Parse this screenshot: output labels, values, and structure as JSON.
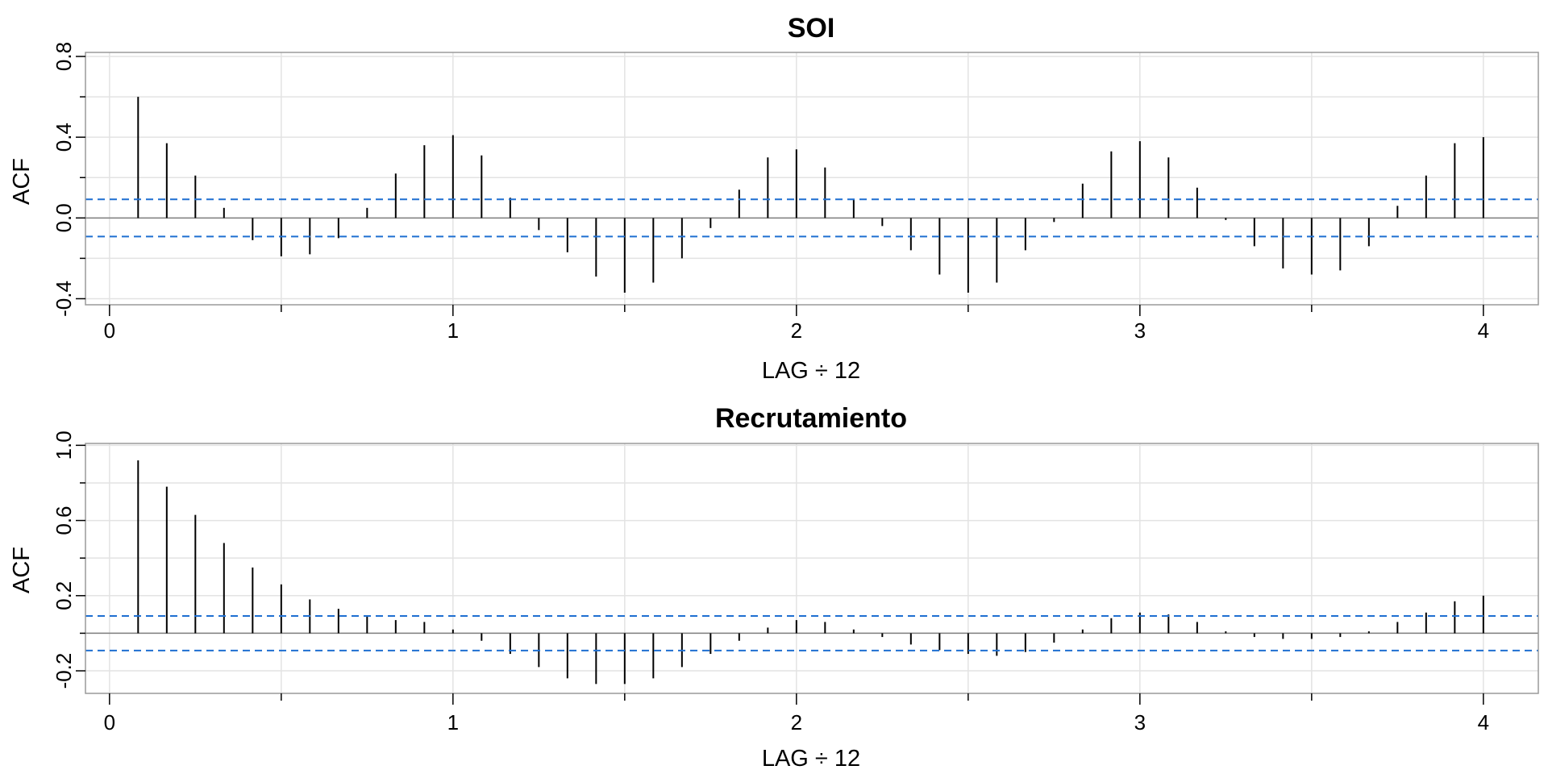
{
  "chart_data": [
    {
      "type": "bar",
      "title": "SOI",
      "xlabel": "LAG ÷ 12",
      "ylabel": "ACF",
      "xlim": [
        -0.07,
        4.16
      ],
      "ylim": [
        -0.43,
        0.82
      ],
      "xticks": [
        0,
        1,
        2,
        3,
        4
      ],
      "xtick_labels": [
        "0",
        "1",
        "2",
        "3",
        "4"
      ],
      "yticks": [
        -0.4,
        0.0,
        0.4,
        0.8
      ],
      "ytick_labels": [
        "-0.4",
        "0.0",
        "0.4",
        "0.8"
      ],
      "grid": true,
      "confidence_band": [
        -0.092,
        0.092
      ],
      "colors": {
        "spike": "#000000",
        "band": "#1f6fd1",
        "zero": "#7f7f7f",
        "grid": "#e3e3e3",
        "frame": "#9a9a9a"
      },
      "lags": [
        0.0833,
        0.1667,
        0.25,
        0.3333,
        0.4167,
        0.5,
        0.5833,
        0.6667,
        0.75,
        0.8333,
        0.9167,
        1.0,
        1.0833,
        1.1667,
        1.25,
        1.3333,
        1.4167,
        1.5,
        1.5833,
        1.6667,
        1.75,
        1.8333,
        1.9167,
        2.0,
        2.0833,
        2.1667,
        2.25,
        2.3333,
        2.4167,
        2.5,
        2.5833,
        2.6667,
        2.75,
        2.8333,
        2.9167,
        3.0,
        3.0833,
        3.1667,
        3.25,
        3.3333,
        3.4167,
        3.5,
        3.5833,
        3.6667,
        3.75,
        3.8333,
        3.9167,
        4.0
      ],
      "values": [
        0.6,
        0.37,
        0.21,
        0.05,
        -0.11,
        -0.19,
        -0.18,
        -0.1,
        0.05,
        0.22,
        0.36,
        0.41,
        0.31,
        0.1,
        -0.06,
        -0.17,
        -0.29,
        -0.37,
        -0.32,
        -0.2,
        -0.05,
        0.14,
        0.3,
        0.34,
        0.25,
        0.09,
        -0.04,
        -0.16,
        -0.28,
        -0.37,
        -0.32,
        -0.16,
        -0.02,
        0.17,
        0.33,
        0.38,
        0.3,
        0.15,
        -0.01,
        -0.14,
        -0.25,
        -0.28,
        -0.26,
        -0.14,
        0.06,
        0.21,
        0.37,
        0.4
      ]
    },
    {
      "type": "bar",
      "title": "Recrutamiento",
      "xlabel": "LAG ÷ 12",
      "ylabel": "ACF",
      "xlim": [
        -0.07,
        4.16
      ],
      "ylim": [
        -0.32,
        1.01
      ],
      "xticks": [
        0,
        1,
        2,
        3,
        4
      ],
      "xtick_labels": [
        "0",
        "1",
        "2",
        "3",
        "4"
      ],
      "yticks": [
        -0.2,
        0.2,
        0.6,
        1.0
      ],
      "ytick_labels": [
        "-0.2",
        "0.2",
        "0.6",
        "1.0"
      ],
      "grid": true,
      "confidence_band": [
        -0.092,
        0.092
      ],
      "colors": {
        "spike": "#000000",
        "band": "#1f6fd1",
        "zero": "#7f7f7f",
        "grid": "#e3e3e3",
        "frame": "#9a9a9a"
      },
      "lags": [
        0.0833,
        0.1667,
        0.25,
        0.3333,
        0.4167,
        0.5,
        0.5833,
        0.6667,
        0.75,
        0.8333,
        0.9167,
        1.0,
        1.0833,
        1.1667,
        1.25,
        1.3333,
        1.4167,
        1.5,
        1.5833,
        1.6667,
        1.75,
        1.8333,
        1.9167,
        2.0,
        2.0833,
        2.1667,
        2.25,
        2.3333,
        2.4167,
        2.5,
        2.5833,
        2.6667,
        2.75,
        2.8333,
        2.9167,
        3.0,
        3.0833,
        3.1667,
        3.25,
        3.3333,
        3.4167,
        3.5,
        3.5833,
        3.6667,
        3.75,
        3.8333,
        3.9167,
        4.0
      ],
      "values": [
        0.92,
        0.78,
        0.63,
        0.48,
        0.35,
        0.26,
        0.18,
        0.13,
        0.09,
        0.07,
        0.06,
        0.02,
        -0.04,
        -0.11,
        -0.18,
        -0.24,
        -0.27,
        -0.27,
        -0.24,
        -0.18,
        -0.11,
        -0.04,
        0.03,
        0.07,
        0.06,
        0.02,
        -0.02,
        -0.06,
        -0.09,
        -0.11,
        -0.12,
        -0.1,
        -0.05,
        0.02,
        0.08,
        0.11,
        0.1,
        0.06,
        0.01,
        -0.02,
        -0.03,
        -0.03,
        -0.02,
        0.01,
        0.06,
        0.11,
        0.17,
        0.2
      ]
    }
  ]
}
